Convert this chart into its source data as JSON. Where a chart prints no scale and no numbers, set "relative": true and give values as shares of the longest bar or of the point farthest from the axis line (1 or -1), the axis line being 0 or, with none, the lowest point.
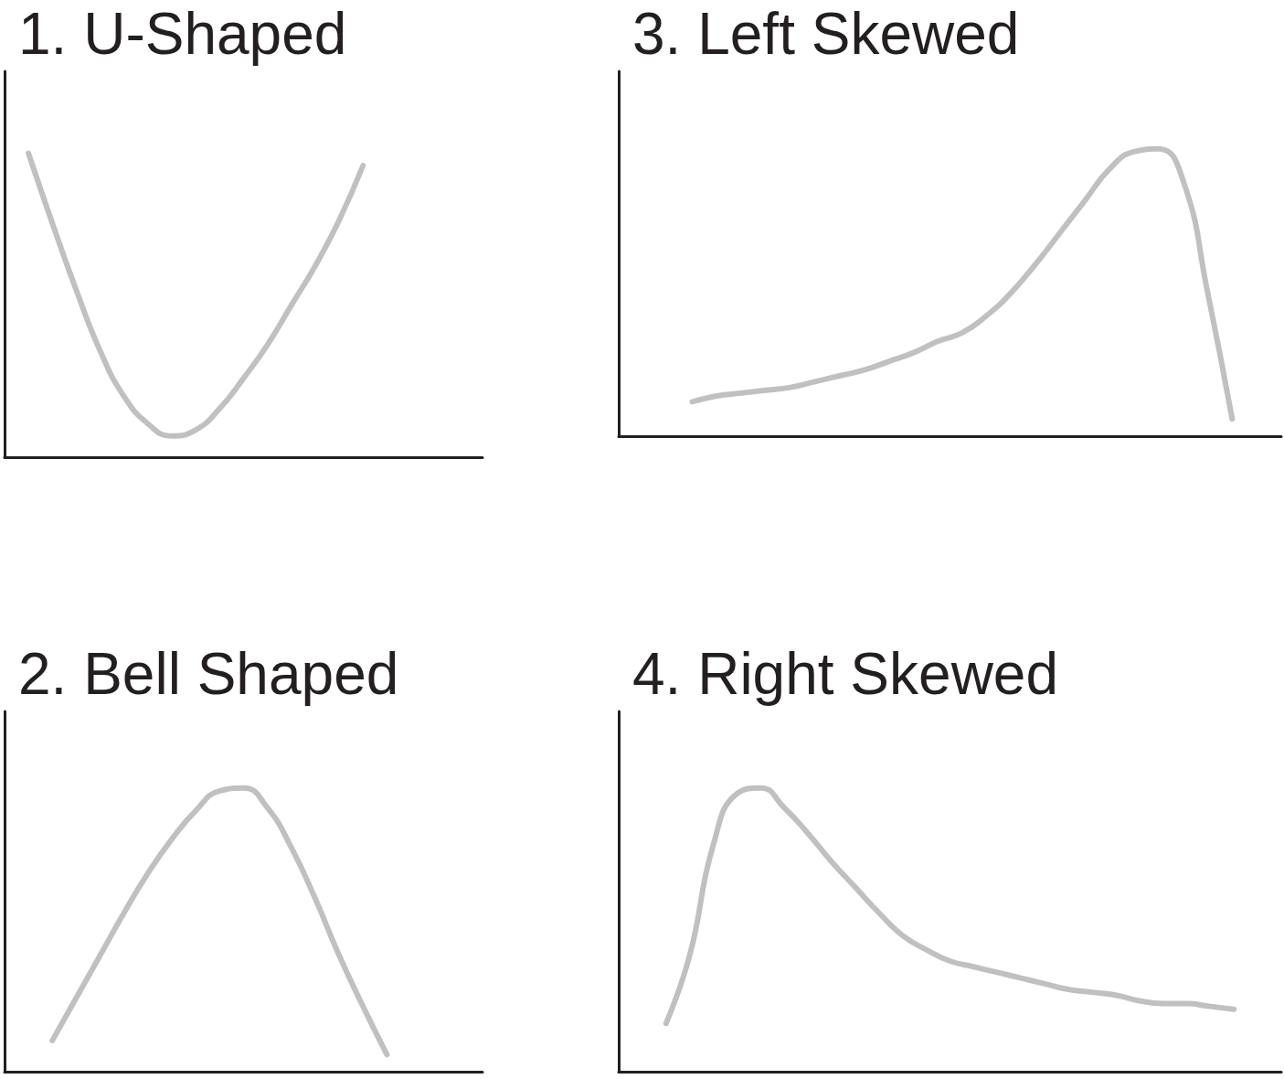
{
  "chart_data": [
    {
      "type": "line",
      "title": "1. U-Shaped",
      "relative": true,
      "marker": "none",
      "color": "#c0c0c0",
      "categories": [
        null,
        null,
        null,
        null,
        null,
        null,
        null,
        null,
        null,
        null,
        null,
        null,
        null,
        null,
        null,
        null,
        null,
        null,
        null,
        null,
        null
      ],
      "values": [
        null,
        1.0,
        0.77,
        0.55,
        0.35,
        0.2,
        0.11,
        0.07,
        0.09,
        0.16,
        0.26,
        0.37,
        0.5,
        0.63,
        0.78,
        0.96,
        null,
        null,
        null,
        null,
        null
      ]
    },
    {
      "type": "line",
      "title": "3. Left Skewed",
      "relative": true,
      "marker": "none",
      "color": "#c0c0c0",
      "categories": [
        null,
        null,
        null,
        null,
        null,
        null,
        null,
        null,
        null,
        null,
        null,
        null,
        null,
        null,
        null,
        null,
        null,
        null,
        null,
        null,
        null,
        null,
        null,
        null,
        null,
        null,
        null,
        null
      ],
      "values": [
        null,
        null,
        null,
        0.12,
        0.14,
        0.15,
        0.16,
        0.17,
        0.19,
        0.21,
        0.23,
        0.26,
        0.29,
        0.33,
        0.36,
        0.42,
        0.5,
        0.6,
        0.71,
        0.82,
        0.93,
        0.99,
        1.0,
        0.89,
        0.5,
        0.06,
        null,
        null
      ]
    },
    {
      "type": "line",
      "title": "2. Bell Shaped",
      "relative": true,
      "marker": "none",
      "color": "#c0c0c0",
      "categories": [
        null,
        null,
        null,
        null,
        null,
        null,
        null,
        null,
        null,
        null,
        null,
        null,
        null,
        null,
        null,
        null,
        null,
        null,
        null,
        null,
        null
      ],
      "values": [
        null,
        null,
        0.11,
        0.26,
        0.41,
        0.56,
        0.7,
        0.82,
        0.92,
        0.99,
        1.0,
        0.93,
        0.79,
        0.61,
        0.41,
        0.23,
        0.06,
        null,
        null,
        null,
        null
      ]
    },
    {
      "type": "line",
      "title": "4. Right Skewed",
      "relative": true,
      "marker": "none",
      "color": "#c0c0c0",
      "categories": [
        null,
        null,
        null,
        null,
        null,
        null,
        null,
        null,
        null,
        null,
        null,
        null,
        null,
        null,
        null,
        null,
        null,
        null,
        null,
        null,
        null,
        null,
        null,
        null,
        null,
        null,
        null,
        null,
        null
      ],
      "values": [
        null,
        null,
        0.17,
        0.41,
        0.8,
        0.98,
        1.0,
        0.93,
        0.84,
        0.74,
        0.65,
        0.56,
        0.48,
        0.43,
        0.39,
        0.37,
        0.35,
        0.33,
        0.31,
        0.29,
        0.28,
        0.27,
        0.25,
        0.24,
        0.24,
        0.23,
        0.22,
        null,
        null
      ]
    }
  ]
}
